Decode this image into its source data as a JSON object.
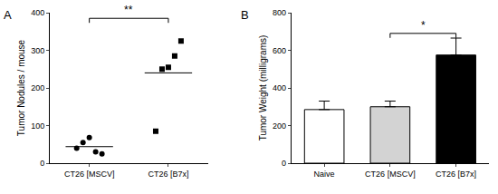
{
  "chart_data": [
    {
      "panel": "A",
      "type": "scatter",
      "categories": [
        "CT26 [MSCV]",
        "CT26 [B7x]"
      ],
      "points": [
        [
          40,
          55,
          68,
          30,
          25
        ],
        [
          85,
          250,
          255,
          285,
          325
        ]
      ],
      "means": [
        44,
        240
      ],
      "markers": [
        "circle",
        "square"
      ],
      "color": "#000000",
      "ylabel": "Tumor Nodules / mouse",
      "ylim": [
        0,
        400
      ],
      "yticks": [
        0,
        100,
        200,
        300,
        400
      ],
      "grid": false,
      "brackets": [
        {
          "from": 0,
          "to": 1,
          "y": 385,
          "label": "**"
        }
      ]
    },
    {
      "panel": "B",
      "type": "bar",
      "categories": [
        "Naive",
        "CT26 [MSCV]",
        "CT26 [B7x]"
      ],
      "values": [
        285,
        300,
        575
      ],
      "errors": [
        45,
        30,
        90
      ],
      "colors": [
        "#ffffff",
        "#d3d3d3",
        "#000000"
      ],
      "ylabel": "Tumor Weight (milligrams)",
      "ylim": [
        0,
        800
      ],
      "yticks": [
        0,
        200,
        400,
        600,
        800
      ],
      "grid": false,
      "brackets": [
        {
          "from": 1,
          "to": 2,
          "y": 690,
          "label": "*"
        }
      ]
    }
  ]
}
